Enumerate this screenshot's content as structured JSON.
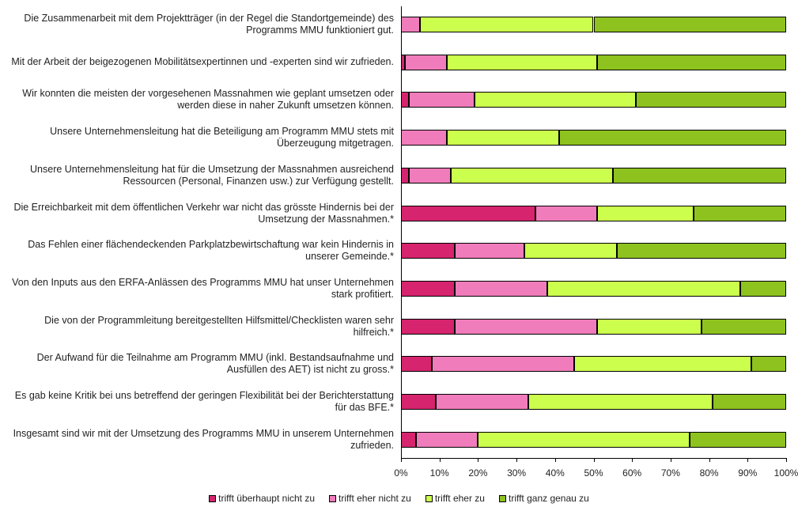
{
  "chart_data": {
    "type": "stacked-bar-horizontal",
    "categories": [
      "Die Zusammenarbeit mit dem Projektträger (in der Regel die Standortgemeinde) des Programms MMU funktioniert gut.",
      "Mit der Arbeit der beigezogenen Mobilitätsexpertinnen und -experten sind wir zufrieden.",
      "Wir konnten die meisten der vorgesehenen Massnahmen wie geplant umsetzen oder werden diese in naher Zukunft umsetzen können.",
      "Unsere Unternehmensleitung hat die Beteiligung am Programm MMU stets mit Überzeugung mitgetragen.",
      "Unsere Unternehmensleitung hat für die Umsetzung der Massnahmen ausreichend Ressourcen (Personal, Finanzen usw.) zur Verfügung gestellt.",
      "Die Erreichbarkeit mit dem öffentlichen Verkehr war nicht das grösste Hindernis bei der Umsetzung der Massnahmen.*",
      "Das Fehlen einer flächendeckenden Parkplatzbewirtschaftung war kein Hindernis in unserer Gemeinde.*",
      "Von den Inputs aus den ERFA-Anlässen des Programms MMU hat unser Unternehmen stark profitiert.",
      "Die von der Programmleitung bereitgestellten Hilfsmittel/Checklisten waren sehr hilfreich.*",
      "Der Aufwand für die Teilnahme am Programm MMU (inkl. Bestandsaufnahme und Ausfüllen des AET) ist nicht zu gross.*",
      "Es gab keine Kritik bei uns betreffend der geringen Flexibilität bei der Berichterstattung für das BFE.*",
      "Insgesamt sind wir mit der Umsetzung des Programms MMU in unserem Unternehmen zufrieden."
    ],
    "series": [
      {
        "name": "trifft überhaupt nicht zu",
        "color": "#d6246e",
        "values": [
          0,
          1,
          2,
          0,
          2,
          35,
          14,
          14,
          14,
          8,
          9,
          4
        ]
      },
      {
        "name": "trifft eher nicht zu",
        "color": "#f07cbb",
        "values": [
          5,
          11,
          17,
          12,
          11,
          16,
          18,
          24,
          37,
          37,
          24,
          16
        ]
      },
      {
        "name": "trifft eher zu",
        "color": "#ccff4d",
        "values": [
          45,
          39,
          42,
          29,
          42,
          25,
          24,
          50,
          27,
          46,
          48,
          55
        ]
      },
      {
        "name": "trifft ganz genau zu",
        "color": "#8dc21f",
        "values": [
          50,
          49,
          39,
          59,
          45,
          24,
          44,
          12,
          22,
          9,
          19,
          25
        ]
      }
    ],
    "xlim": [
      0,
      100
    ],
    "xticks": [
      {
        "value": 0,
        "label": "0%"
      },
      {
        "value": 10,
        "label": "10%"
      },
      {
        "value": 20,
        "label": "20%"
      },
      {
        "value": 30,
        "label": "30%"
      },
      {
        "value": 40,
        "label": "40%"
      },
      {
        "value": 50,
        "label": "50%"
      },
      {
        "value": 60,
        "label": "60%"
      },
      {
        "value": 70,
        "label": "70%"
      },
      {
        "value": 80,
        "label": "80%"
      },
      {
        "value": 90,
        "label": "90%"
      },
      {
        "value": 100,
        "label": "100%"
      }
    ],
    "legend": "bottom"
  }
}
